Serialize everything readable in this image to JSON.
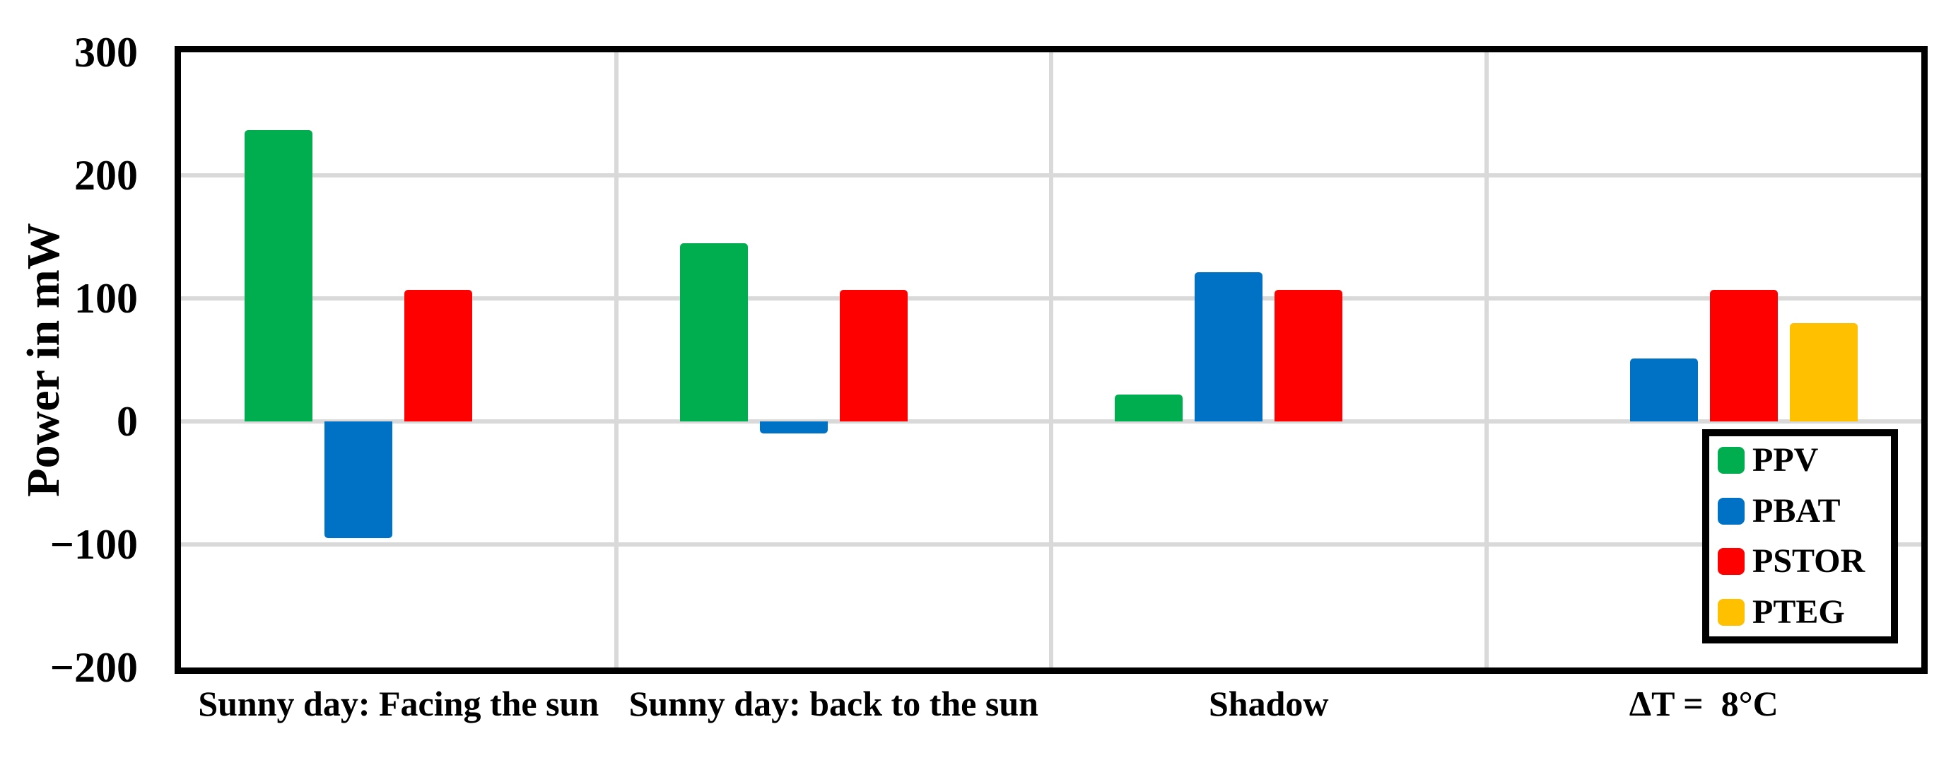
{
  "chart_data": {
    "type": "bar",
    "title": "",
    "ylabel": "Power in mW",
    "xlabel": "",
    "categories": [
      "Sunny day: Facing the sun",
      "Sunny day: back to the sun",
      "Shadow",
      "ΔT =  8°C"
    ],
    "series": [
      {
        "name": "PPV",
        "color": "#00AD4F",
        "values": [
          237,
          145,
          22,
          0
        ]
      },
      {
        "name": "PBAT",
        "color": "#0072C5",
        "values": [
          -95,
          -10,
          121,
          51
        ]
      },
      {
        "name": "PSTOR",
        "color": "#FE0000",
        "values": [
          107,
          107,
          107,
          107
        ]
      },
      {
        "name": "PTEG",
        "color": "#FFC000",
        "values": [
          0,
          0,
          0,
          80
        ]
      }
    ],
    "ylim": [
      -200,
      300
    ],
    "ytick_step": 100,
    "yticks": [
      300,
      200,
      100,
      0,
      -100,
      -200
    ],
    "ytick_labels": [
      "300",
      "200",
      "100",
      "0",
      "−100",
      "−200"
    ],
    "grid": true,
    "gridline_color": "#D9D9D9",
    "legend_position": "bottom-right",
    "legend_items": [
      "PPV",
      "PBAT",
      "PSTOR",
      "PTEG"
    ]
  }
}
